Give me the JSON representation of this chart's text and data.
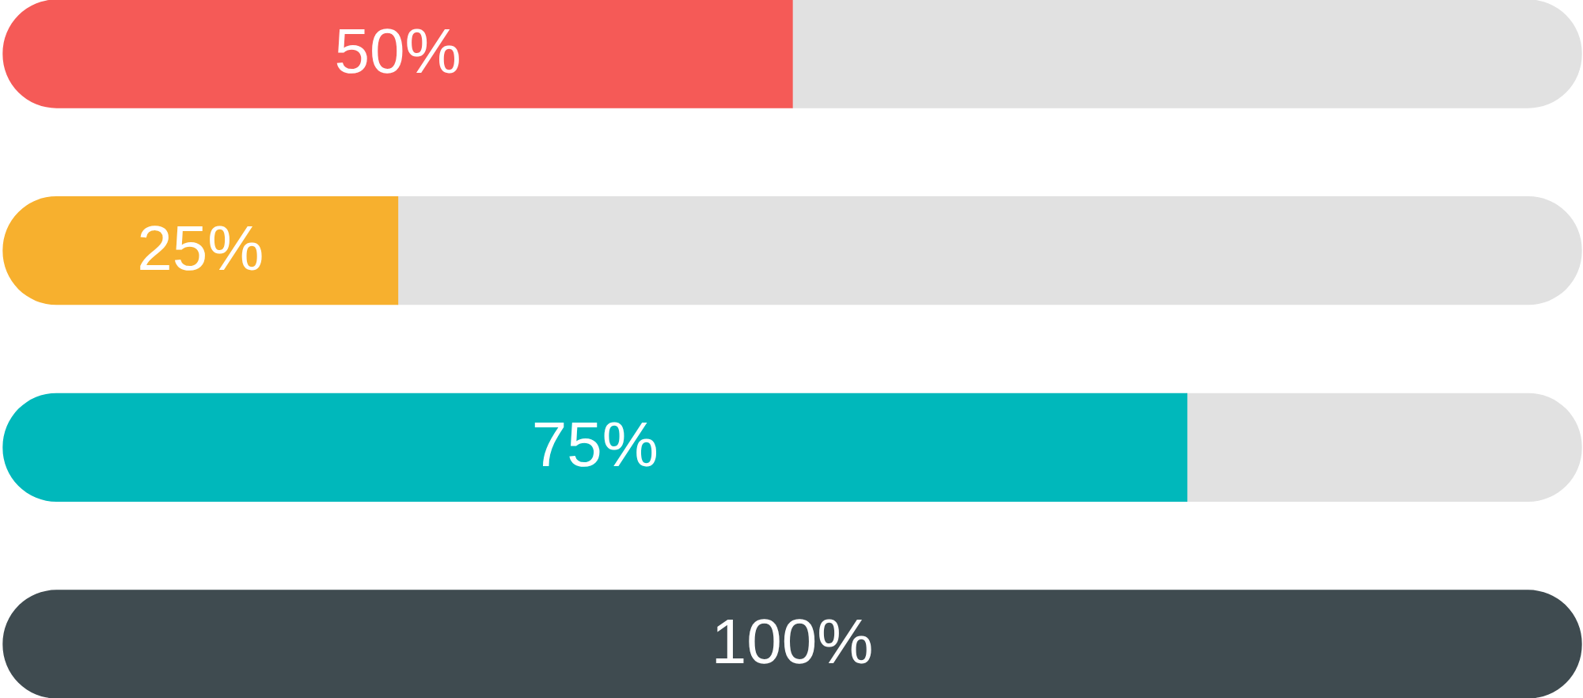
{
  "chart_data": {
    "type": "bar",
    "orientation": "horizontal",
    "stacked": true,
    "categories": [
      null,
      null,
      null,
      null
    ],
    "series": [
      {
        "colors": [
          "#f55a57",
          "#f7b02e",
          "#00b8bb",
          "#3f4b50"
        ],
        "values": [
          50,
          25,
          75,
          100
        ],
        "value_labels": [
          "50%",
          "25%",
          "75%",
          "100%"
        ]
      },
      {
        "color": "#e1e1e1",
        "values": [
          50,
          75,
          25,
          null
        ]
      }
    ],
    "xlim": [
      0,
      100
    ],
    "tick_labels": false
  }
}
